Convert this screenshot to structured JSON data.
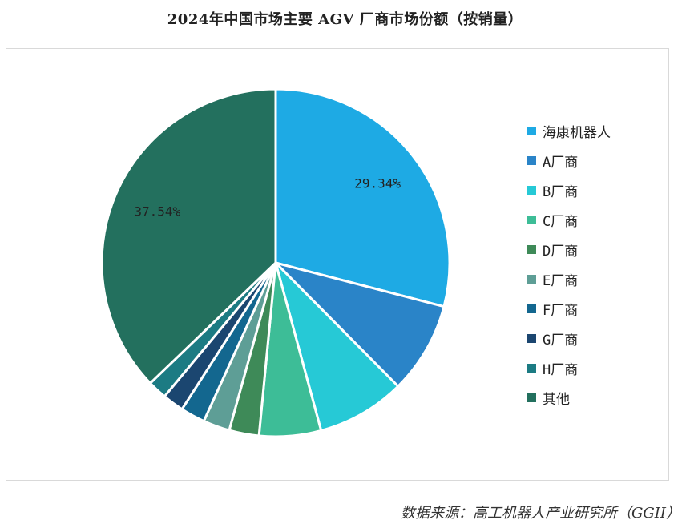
{
  "title": "2024年中国市场主要 AGV 厂商市场份额（按销量）",
  "source": "数据来源：高工机器人产业研究所（GGII）",
  "chart_data": {
    "type": "pie",
    "title": "2024年中国市场主要 AGV 厂商市场份额（按销量）",
    "legend_position": "right",
    "categories": [
      "海康机器人",
      "A厂商",
      "B厂商",
      "C厂商",
      "D厂商",
      "E厂商",
      "F厂商",
      "G厂商",
      "H厂商",
      "其他"
    ],
    "values": [
      29.34,
      8.6,
      8.3,
      5.8,
      2.8,
      2.5,
      2.3,
      2.0,
      1.8,
      37.54
    ],
    "colors": [
      "#1eaae4",
      "#2a84c8",
      "#26c9d6",
      "#3dbd97",
      "#3e8a58",
      "#5e9e96",
      "#13678f",
      "#1b4670",
      "#1c7b83",
      "#23705e"
    ],
    "data_labels": [
      "29.34%",
      "",
      "",
      "",
      "",
      "",
      "",
      "",
      "",
      "37.54%"
    ]
  }
}
